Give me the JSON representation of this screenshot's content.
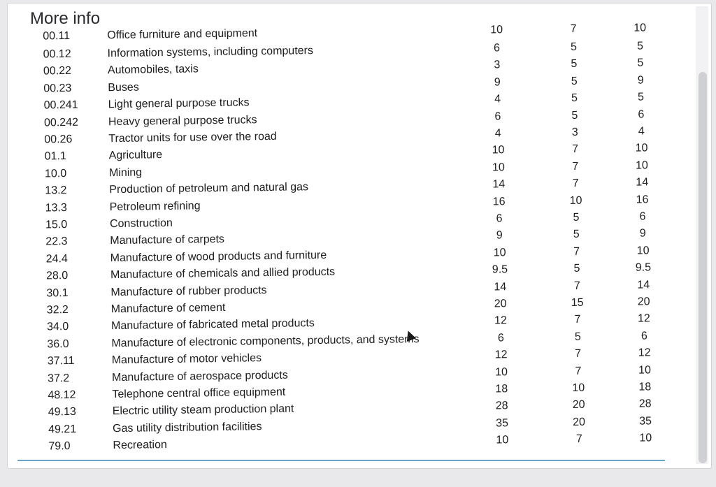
{
  "title": "More info",
  "header_partial": {
    "code": "00.11",
    "desc": "Office furniture and equipment",
    "c1": "10",
    "c2": "7",
    "c3": "10"
  },
  "rows": [
    {
      "code": "00.12",
      "desc": "Information systems, including computers",
      "c1": "6",
      "c2": "5",
      "c3": "5"
    },
    {
      "code": "00.22",
      "desc": "Automobiles, taxis",
      "c1": "3",
      "c2": "5",
      "c3": "5"
    },
    {
      "code": "00.23",
      "desc": "Buses",
      "c1": "9",
      "c2": "5",
      "c3": "9"
    },
    {
      "code": "00.241",
      "desc": "Light general purpose trucks",
      "c1": "4",
      "c2": "5",
      "c3": "5"
    },
    {
      "code": "00.242",
      "desc": "Heavy general purpose trucks",
      "c1": "6",
      "c2": "5",
      "c3": "6"
    },
    {
      "code": "00.26",
      "desc": "Tractor units for use over the road",
      "c1": "4",
      "c2": "3",
      "c3": "4"
    },
    {
      "code": "01.1",
      "desc": "Agriculture",
      "c1": "10",
      "c2": "7",
      "c3": "10"
    },
    {
      "code": "10.0",
      "desc": "Mining",
      "c1": "10",
      "c2": "7",
      "c3": "10"
    },
    {
      "code": "13.2",
      "desc": "Production of petroleum and natural gas",
      "c1": "14",
      "c2": "7",
      "c3": "14"
    },
    {
      "code": "13.3",
      "desc": "Petroleum refining",
      "c1": "16",
      "c2": "10",
      "c3": "16"
    },
    {
      "code": "15.0",
      "desc": "Construction",
      "c1": "6",
      "c2": "5",
      "c3": "6"
    },
    {
      "code": "22.3",
      "desc": "Manufacture of carpets",
      "c1": "9",
      "c2": "5",
      "c3": "9"
    },
    {
      "code": "24.4",
      "desc": "Manufacture of wood products and furniture",
      "c1": "10",
      "c2": "7",
      "c3": "10"
    },
    {
      "code": "28.0",
      "desc": "Manufacture of chemicals and allied products",
      "c1": "9.5",
      "c2": "5",
      "c3": "9.5"
    },
    {
      "code": "30.1",
      "desc": "Manufacture of rubber products",
      "c1": "14",
      "c2": "7",
      "c3": "14"
    },
    {
      "code": "32.2",
      "desc": "Manufacture of cement",
      "c1": "20",
      "c2": "15",
      "c3": "20"
    },
    {
      "code": "34.0",
      "desc": "Manufacture of fabricated metal products",
      "c1": "12",
      "c2": "7",
      "c3": "12"
    },
    {
      "code": "36.0",
      "desc": "Manufacture of electronic components, products, and systems",
      "c1": "6",
      "c2": "5",
      "c3": "6"
    },
    {
      "code": "37.11",
      "desc": "Manufacture of motor vehicles",
      "c1": "12",
      "c2": "7",
      "c3": "12"
    },
    {
      "code": "37.2",
      "desc": "Manufacture of aerospace products",
      "c1": "10",
      "c2": "7",
      "c3": "10"
    },
    {
      "code": "48.12",
      "desc": "Telephone central office equipment",
      "c1": "18",
      "c2": "10",
      "c3": "18"
    },
    {
      "code": "49.13",
      "desc": "Electric utility steam production plant",
      "c1": "28",
      "c2": "20",
      "c3": "28"
    },
    {
      "code": "49.21",
      "desc": "Gas utility distribution facilities",
      "c1": "35",
      "c2": "20",
      "c3": "35"
    },
    {
      "code": "79.0",
      "desc": "Recreation",
      "c1": "10",
      "c2": "7",
      "c3": "10"
    }
  ]
}
